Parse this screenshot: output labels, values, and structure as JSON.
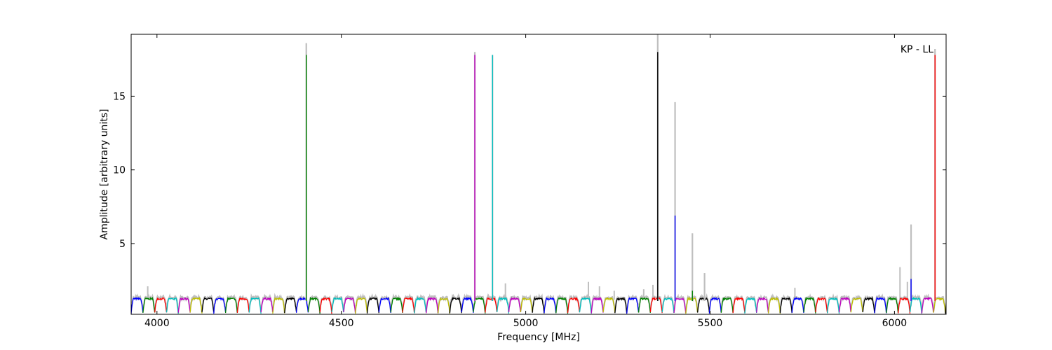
{
  "chart_data": {
    "type": "line",
    "title": "",
    "annotation": "KP - LL",
    "xlabel": "Frequency [MHz]",
    "ylabel": "Amplitude [arbitrary units]",
    "xlim": [
      3930,
      6140
    ],
    "ylim": [
      0.2,
      19.2
    ],
    "xticks": [
      4000,
      4500,
      5000,
      5500,
      6000
    ],
    "yticks": [
      5,
      10,
      15
    ],
    "grid": false,
    "legend": "none",
    "band_width_mhz": 32,
    "band_start_mhz": 3930,
    "band_colors": [
      "#0000ff",
      "#008000",
      "#ff0000",
      "#00bfbf",
      "#bf00bf",
      "#bfbf00",
      "#000000"
    ],
    "background_series_color": "#bfbfbf",
    "spikes": [
      {
        "x": 4405,
        "value": 17.8,
        "color": "#008000",
        "bg_value": 18.6
      },
      {
        "x": 4862,
        "value": 17.8,
        "color": "#bf00bf",
        "bg_value": 18.0
      },
      {
        "x": 4910,
        "value": 17.8,
        "color": "#00bfbf",
        "bg_value": 17.8
      },
      {
        "x": 5358,
        "value": 18.0,
        "color": "#000000",
        "bg_value": 19.2
      },
      {
        "x": 5405,
        "value": 6.9,
        "color": "#0000ff",
        "bg_value": 14.6
      },
      {
        "x": 5452,
        "value": 1.8,
        "color": "#008000",
        "bg_value": 5.7
      },
      {
        "x": 5485,
        "value": 1.1,
        "color": "#ff0000",
        "bg_value": 3.0
      },
      {
        "x": 6045,
        "value": 2.6,
        "color": "#0000ff",
        "bg_value": 6.3
      },
      {
        "x": 6110,
        "value": 17.8,
        "color": "#ff0000",
        "bg_value": 18.2
      }
    ],
    "bg_bumps": [
      {
        "x": 3975,
        "value": 2.1
      },
      {
        "x": 4945,
        "value": 2.3
      },
      {
        "x": 5170,
        "value": 2.4
      },
      {
        "x": 5200,
        "value": 2.1
      },
      {
        "x": 5240,
        "value": 1.8
      },
      {
        "x": 5320,
        "value": 1.9
      },
      {
        "x": 5345,
        "value": 2.2
      },
      {
        "x": 5730,
        "value": 2.0
      },
      {
        "x": 6015,
        "value": 3.4
      },
      {
        "x": 6035,
        "value": 2.4
      }
    ]
  }
}
